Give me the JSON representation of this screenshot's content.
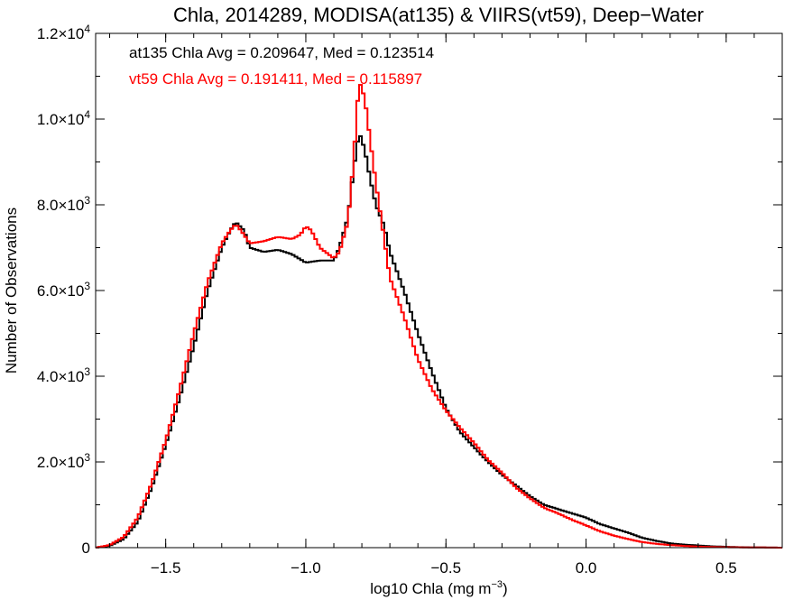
{
  "chart_data": {
    "type": "line",
    "title": "Chla, 2014289, MODISA(at135) & VIIRS(vt59), Deep−Water",
    "xlabel": {
      "main": "log10 Chla (mg m",
      "sup": "−3",
      "close": ")"
    },
    "ylabel": "Number of Observations",
    "xlim": [
      -1.75,
      0.7
    ],
    "ylim": [
      0,
      12000
    ],
    "step": true,
    "grid": false,
    "x_ticks": [
      {
        "value": -1.5,
        "label": "−1.5"
      },
      {
        "value": -1.0,
        "label": "−1.0"
      },
      {
        "value": -0.5,
        "label": "−0.5"
      },
      {
        "value": 0.0,
        "label": "0.0"
      },
      {
        "value": 0.5,
        "label": "0.5"
      }
    ],
    "y_ticks": [
      {
        "value": 0,
        "mantissa": "0",
        "exp": ""
      },
      {
        "value": 2000,
        "mantissa": "2.0×10",
        "exp": "3"
      },
      {
        "value": 4000,
        "mantissa": "4.0×10",
        "exp": "3"
      },
      {
        "value": 6000,
        "mantissa": "6.0×10",
        "exp": "3"
      },
      {
        "value": 8000,
        "mantissa": "8.0×10",
        "exp": "3"
      },
      {
        "value": 10000,
        "mantissa": "1.0×10",
        "exp": "4"
      },
      {
        "value": 12000,
        "mantissa": "1.2×10",
        "exp": "4"
      }
    ],
    "annotations": [
      {
        "text": "at135 Chla Avg = 0.209647, Med = 0.123514",
        "color": "#000000"
      },
      {
        "text": "vt59 Chla Avg = 0.191411, Med = 0.115897",
        "color": "#ff0000"
      }
    ],
    "series": [
      {
        "color": "#000000",
        "points": [
          [
            -1.75,
            0
          ],
          [
            -1.7,
            40
          ],
          [
            -1.65,
            200
          ],
          [
            -1.6,
            600
          ],
          [
            -1.55,
            1400
          ],
          [
            -1.5,
            2400
          ],
          [
            -1.45,
            3500
          ],
          [
            -1.4,
            4700
          ],
          [
            -1.35,
            6000
          ],
          [
            -1.3,
            7000
          ],
          [
            -1.27,
            7400
          ],
          [
            -1.25,
            7600
          ],
          [
            -1.22,
            7400
          ],
          [
            -1.2,
            7000
          ],
          [
            -1.15,
            6900
          ],
          [
            -1.1,
            6950
          ],
          [
            -1.05,
            6850
          ],
          [
            -1.0,
            6650
          ],
          [
            -0.95,
            6700
          ],
          [
            -0.9,
            6700
          ],
          [
            -0.88,
            7000
          ],
          [
            -0.85,
            7700
          ],
          [
            -0.83,
            8800
          ],
          [
            -0.81,
            9700
          ],
          [
            -0.79,
            9300
          ],
          [
            -0.77,
            8600
          ],
          [
            -0.75,
            8000
          ],
          [
            -0.72,
            7500
          ],
          [
            -0.7,
            6900
          ],
          [
            -0.65,
            6000
          ],
          [
            -0.6,
            5000
          ],
          [
            -0.55,
            4100
          ],
          [
            -0.5,
            3250
          ],
          [
            -0.45,
            2700
          ],
          [
            -0.4,
            2350
          ],
          [
            -0.35,
            2000
          ],
          [
            -0.3,
            1700
          ],
          [
            -0.25,
            1450
          ],
          [
            -0.2,
            1200
          ],
          [
            -0.15,
            1000
          ],
          [
            -0.1,
            900
          ],
          [
            -0.05,
            800
          ],
          [
            0.0,
            700
          ],
          [
            0.05,
            550
          ],
          [
            0.1,
            450
          ],
          [
            0.15,
            350
          ],
          [
            0.2,
            230
          ],
          [
            0.25,
            160
          ],
          [
            0.3,
            100
          ],
          [
            0.35,
            70
          ],
          [
            0.4,
            50
          ],
          [
            0.45,
            30
          ],
          [
            0.5,
            20
          ],
          [
            0.55,
            10
          ],
          [
            0.6,
            5
          ],
          [
            0.7,
            0
          ]
        ]
      },
      {
        "color": "#ff0000",
        "points": [
          [
            -1.75,
            0
          ],
          [
            -1.7,
            60
          ],
          [
            -1.65,
            250
          ],
          [
            -1.6,
            700
          ],
          [
            -1.55,
            1500
          ],
          [
            -1.5,
            2500
          ],
          [
            -1.45,
            3700
          ],
          [
            -1.4,
            5000
          ],
          [
            -1.35,
            6200
          ],
          [
            -1.3,
            7100
          ],
          [
            -1.27,
            7400
          ],
          [
            -1.25,
            7550
          ],
          [
            -1.22,
            7300
          ],
          [
            -1.2,
            7100
          ],
          [
            -1.15,
            7150
          ],
          [
            -1.1,
            7250
          ],
          [
            -1.05,
            7200
          ],
          [
            -1.02,
            7300
          ],
          [
            -1.0,
            7500
          ],
          [
            -0.98,
            7400
          ],
          [
            -0.95,
            7000
          ],
          [
            -0.9,
            6750
          ],
          [
            -0.88,
            6900
          ],
          [
            -0.85,
            7600
          ],
          [
            -0.83,
            9000
          ],
          [
            -0.81,
            10900
          ],
          [
            -0.79,
            10500
          ],
          [
            -0.77,
            9500
          ],
          [
            -0.75,
            8500
          ],
          [
            -0.72,
            7200
          ],
          [
            -0.7,
            6300
          ],
          [
            -0.65,
            5400
          ],
          [
            -0.6,
            4400
          ],
          [
            -0.55,
            3700
          ],
          [
            -0.5,
            3200
          ],
          [
            -0.45,
            2800
          ],
          [
            -0.4,
            2450
          ],
          [
            -0.35,
            2050
          ],
          [
            -0.3,
            1750
          ],
          [
            -0.25,
            1400
          ],
          [
            -0.2,
            1150
          ],
          [
            -0.15,
            930
          ],
          [
            -0.1,
            800
          ],
          [
            -0.05,
            650
          ],
          [
            0.0,
            520
          ],
          [
            0.05,
            380
          ],
          [
            0.1,
            280
          ],
          [
            0.15,
            200
          ],
          [
            0.2,
            130
          ],
          [
            0.25,
            90
          ],
          [
            0.3,
            60
          ],
          [
            0.35,
            40
          ],
          [
            0.4,
            25
          ],
          [
            0.45,
            15
          ],
          [
            0.5,
            10
          ],
          [
            0.6,
            5
          ],
          [
            0.7,
            0
          ]
        ]
      }
    ]
  }
}
